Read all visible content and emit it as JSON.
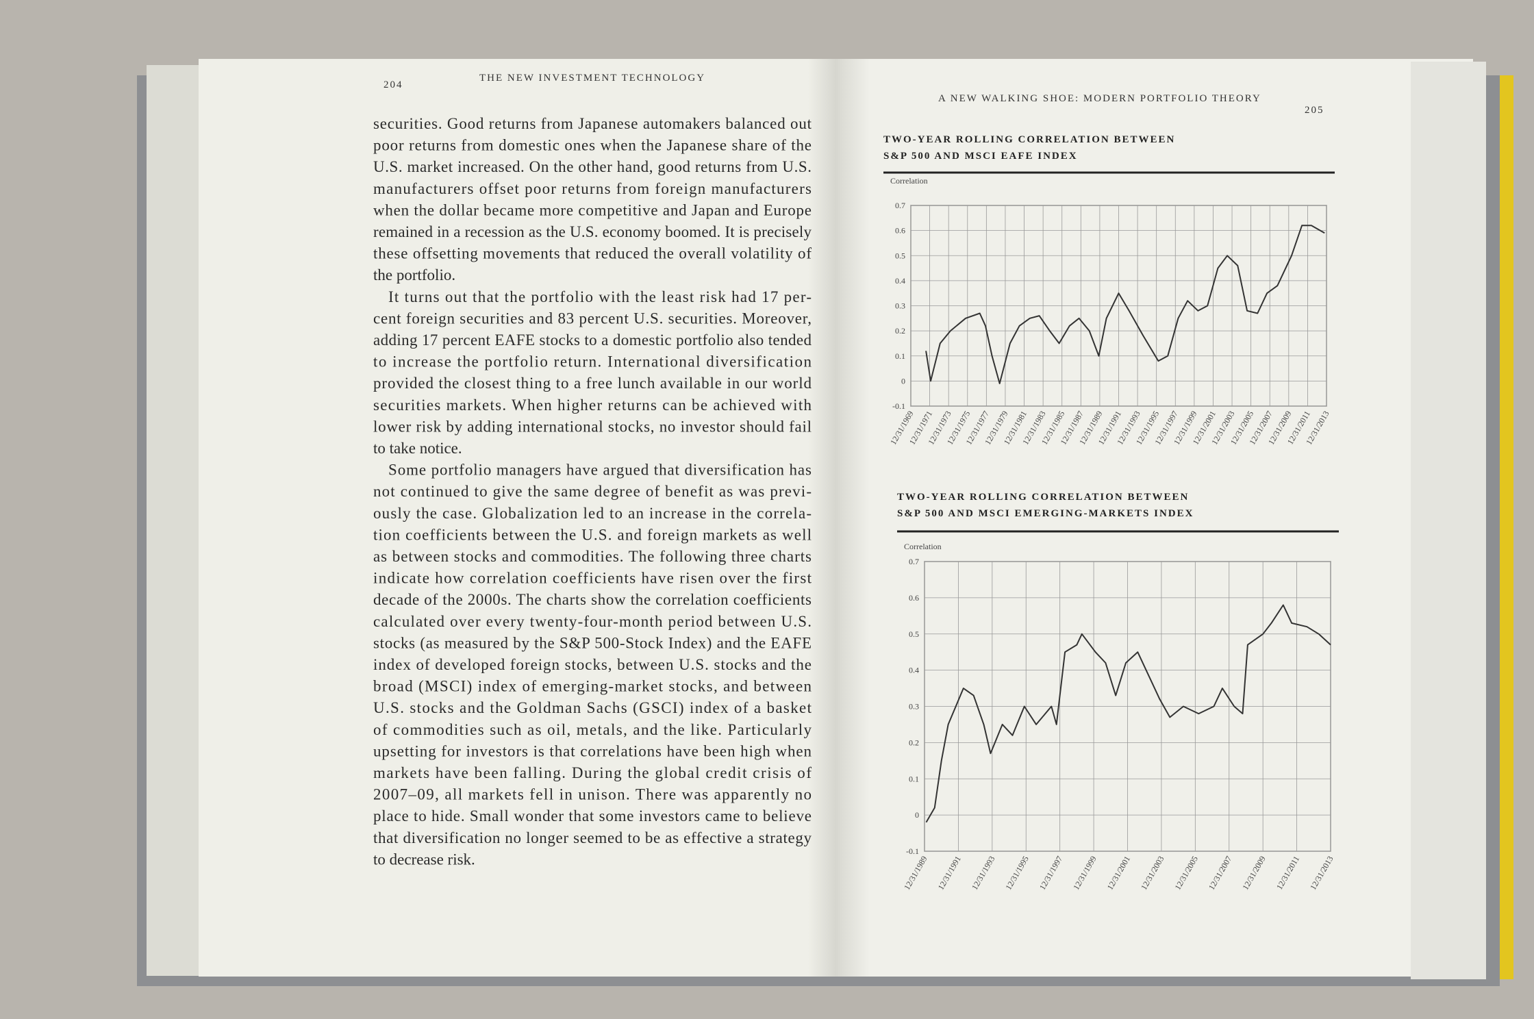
{
  "left_page": {
    "page_number": "204",
    "running_head": "THE NEW INVESTMENT TECHNOLOGY",
    "paragraphs": [
      {
        "lines": [
          "securities. Good returns from Japanese automakers balanced out",
          "poor returns from domestic ones when the Japanese share of the",
          "U.S. market increased. On the other hand, good returns from U.S.",
          "manufacturers offset poor returns from foreign manufacturers",
          "when the dollar became more competitive and Japan and Europe",
          "remained in a recession as the U.S. economy boomed. It is precisely",
          "these offsetting movements that reduced the overall volatility of",
          "the portfolio."
        ]
      },
      {
        "lines": [
          "It turns out that the portfolio with the least risk had 17 per-",
          "cent foreign securities and 83 percent U.S. securities. Moreover,",
          "adding 17 percent EAFE stocks to a domestic portfolio also tended",
          "to increase the portfolio return. International diversification",
          "provided the closest thing to a free lunch available in our world",
          "securities markets. When higher returns can be achieved with",
          "lower risk by adding international stocks, no investor should fail",
          "to take notice."
        ]
      },
      {
        "lines": [
          "Some portfolio managers have argued that diversification has",
          "not continued to give the same degree of benefit as was previ-",
          "ously the case. Globalization led to an increase in the correla-",
          "tion coefficients between the U.S. and foreign markets as well",
          "as between stocks and commodities. The following three charts",
          "indicate how correlation coefficients have risen over the first",
          "decade of the 2000s. The charts show the correlation coefficients",
          "calculated over every twenty-four-month period between U.S.",
          "stocks (as measured by the S&P 500-Stock Index) and the EAFE",
          "index of developed foreign stocks, between U.S. stocks and the",
          "broad (MSCI) index of emerging-market stocks, and between",
          "U.S. stocks and the Goldman Sachs (GSCI) index of a basket",
          "of commodities such as oil, metals, and the like. Particularly",
          "upsetting for investors is that correlations have been high when",
          "markets have been falling. During the global credit crisis of",
          "2007–09, all markets fell in unison. There was apparently no",
          "place to hide. Small wonder that some investors came to believe",
          "that diversification no longer seemed to be as effective a strategy",
          "to decrease risk."
        ]
      }
    ]
  },
  "right_page": {
    "running_head": "A NEW WALKING SHOE: MODERN PORTFOLIO THEORY",
    "page_number": "205"
  },
  "chart_data": [
    {
      "type": "line",
      "title": [
        "TWO-YEAR ROLLING CORRELATION BETWEEN",
        "S&P 500 AND MSCI EAFE INDEX"
      ],
      "ylabel": "Correlation",
      "color": "#333333",
      "grid": true,
      "x": [
        1970.6,
        1971.1,
        1972.1,
        1973.2,
        1974.8,
        1976.3,
        1976.9,
        1977.6,
        1978.4,
        1979.5,
        1980.5,
        1981.6,
        1982.6,
        1983.7,
        1984.7,
        1985.8,
        1986.8,
        1987.9,
        1988.9,
        1989.7,
        1991.0,
        1992.1,
        1993.6,
        1995.2,
        1996.2,
        1997.3,
        1998.3,
        1999.4,
        2000.4,
        2001.5,
        2002.5,
        2003.6,
        2004.6,
        2005.7,
        2006.7,
        2007.8,
        2009.3,
        2010.4,
        2011.4,
        2012.8
      ],
      "values": [
        0.12,
        0.0,
        0.15,
        0.2,
        0.25,
        0.27,
        0.22,
        0.1,
        -0.01,
        0.15,
        0.22,
        0.25,
        0.26,
        0.2,
        0.15,
        0.22,
        0.25,
        0.2,
        0.1,
        0.25,
        0.35,
        0.28,
        0.18,
        0.08,
        0.1,
        0.25,
        0.32,
        0.28,
        0.3,
        0.45,
        0.5,
        0.46,
        0.28,
        0.27,
        0.35,
        0.38,
        0.5,
        0.62,
        0.62,
        0.59
      ],
      "xlim": [
        1969,
        2013
      ],
      "ylim": [
        -0.1,
        0.7
      ],
      "yticks": [
        -0.1,
        0,
        0.1,
        0.2,
        0.3,
        0.4,
        0.5,
        0.6,
        0.7
      ],
      "xticks": [
        {
          "value": 1969,
          "label": "12/31/1969"
        },
        {
          "value": 1971,
          "label": "12/31/1971"
        },
        {
          "value": 1973,
          "label": "12/31/1973"
        },
        {
          "value": 1975,
          "label": "12/31/1975"
        },
        {
          "value": 1977,
          "label": "12/31/1977"
        },
        {
          "value": 1979,
          "label": "12/31/1979"
        },
        {
          "value": 1981,
          "label": "12/31/1981"
        },
        {
          "value": 1983,
          "label": "12/31/1983"
        },
        {
          "value": 1985,
          "label": "12/31/1985"
        },
        {
          "value": 1987,
          "label": "12/31/1987"
        },
        {
          "value": 1989,
          "label": "12/31/1989"
        },
        {
          "value": 1991,
          "label": "12/31/1991"
        },
        {
          "value": 1993,
          "label": "12/31/1993"
        },
        {
          "value": 1995,
          "label": "12/31/1995"
        },
        {
          "value": 1997,
          "label": "12/31/1997"
        },
        {
          "value": 1999,
          "label": "12/31/1999"
        },
        {
          "value": 2001,
          "label": "12/31/2001"
        },
        {
          "value": 2003,
          "label": "12/31/2003"
        },
        {
          "value": 2005,
          "label": "12/31/2005"
        },
        {
          "value": 2007,
          "label": "12/31/2007"
        },
        {
          "value": 2009,
          "label": "12/31/2009"
        },
        {
          "value": 2011,
          "label": "12/31/2011"
        },
        {
          "value": 2013,
          "label": "12/31/2013"
        }
      ]
    },
    {
      "type": "line",
      "title": [
        "TWO-YEAR ROLLING CORRELATION BETWEEN",
        "S&P 500 AND MSCI EMERGING-MARKETS INDEX"
      ],
      "ylabel": "Correlation",
      "color": "#333333",
      "grid": true,
      "x": [
        1989.1,
        1989.6,
        1990.0,
        1990.4,
        1991.3,
        1991.9,
        1992.5,
        1992.9,
        1993.6,
        1994.2,
        1994.9,
        1995.6,
        1996.5,
        1996.8,
        1997.3,
        1998.0,
        1998.3,
        1999.1,
        1999.7,
        2000.3,
        2000.9,
        2001.6,
        2002.3,
        2002.9,
        2003.5,
        2004.3,
        2005.2,
        2006.1,
        2006.6,
        2007.3,
        2007.8,
        2008.1,
        2009.0,
        2009.5,
        2010.2,
        2010.7,
        2011.6,
        2012.3,
        2013.0
      ],
      "values": [
        -0.02,
        0.02,
        0.15,
        0.25,
        0.35,
        0.33,
        0.25,
        0.17,
        0.25,
        0.22,
        0.3,
        0.25,
        0.3,
        0.25,
        0.45,
        0.47,
        0.5,
        0.45,
        0.42,
        0.33,
        0.42,
        0.45,
        0.38,
        0.32,
        0.27,
        0.3,
        0.28,
        0.3,
        0.35,
        0.3,
        0.28,
        0.47,
        0.5,
        0.53,
        0.58,
        0.53,
        0.52,
        0.5,
        0.47
      ],
      "xlim": [
        1989,
        2013
      ],
      "ylim": [
        -0.1,
        0.7
      ],
      "yticks": [
        -0.1,
        0,
        0.1,
        0.2,
        0.3,
        0.4,
        0.5,
        0.6,
        0.7
      ],
      "xticks": [
        {
          "value": 1989,
          "label": "12/31/1989"
        },
        {
          "value": 1991,
          "label": "12/31/1991"
        },
        {
          "value": 1993,
          "label": "12/31/1993"
        },
        {
          "value": 1995,
          "label": "12/31/1995"
        },
        {
          "value": 1997,
          "label": "12/31/1997"
        },
        {
          "value": 1999,
          "label": "12/31/1999"
        },
        {
          "value": 2001,
          "label": "12/31/2001"
        },
        {
          "value": 2003,
          "label": "12/31/2003"
        },
        {
          "value": 2005,
          "label": "12/31/2005"
        },
        {
          "value": 2007,
          "label": "12/31/2007"
        },
        {
          "value": 2009,
          "label": "12/31/2009"
        },
        {
          "value": 2011,
          "label": "12/31/2011"
        },
        {
          "value": 2013,
          "label": "12/31/2013"
        }
      ]
    }
  ]
}
